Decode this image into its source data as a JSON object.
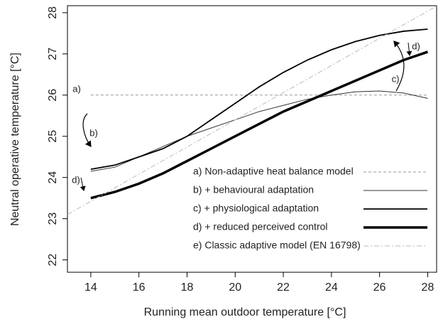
{
  "chart_data": {
    "type": "line",
    "x_label": "Running mean outdoor temperature [°C]",
    "y_label": "Neutral operative temperature [°C]",
    "xlim": [
      13.03,
      28.37
    ],
    "ylim": [
      21.7,
      28.17
    ],
    "xticks": [
      14,
      16,
      18,
      20,
      22,
      24,
      26,
      28
    ],
    "yticks": [
      22,
      23,
      24,
      25,
      26,
      27,
      28
    ],
    "annotations": [
      "a)",
      "b)",
      "c)",
      "d)",
      "d)"
    ],
    "series": [
      {
        "name": "a) Non-adaptive heat balance model",
        "color": "#999999",
        "style": "dashed",
        "width": 1,
        "x": [
          14,
          28
        ],
        "values": [
          26,
          26
        ]
      },
      {
        "name": "b) + behavioural adaptation",
        "color": "#333333",
        "style": "solid",
        "width": 1,
        "x": [
          14,
          15,
          16,
          17,
          18,
          19,
          20,
          21,
          22,
          23,
          24,
          25,
          26,
          27,
          28
        ],
        "values": [
          24.15,
          24.25,
          24.5,
          24.75,
          25.0,
          25.2,
          25.4,
          25.6,
          25.75,
          25.9,
          26.0,
          26.08,
          26.1,
          26.05,
          25.92
        ]
      },
      {
        "name": "c) + physiological adaptation",
        "color": "#000000",
        "style": "solid",
        "width": 1.8,
        "x": [
          14,
          15,
          16,
          17,
          18,
          19,
          20,
          21,
          22,
          23,
          24,
          25,
          26,
          27,
          28
        ],
        "values": [
          24.2,
          24.3,
          24.5,
          24.7,
          25.0,
          25.4,
          25.8,
          26.2,
          26.55,
          26.85,
          27.1,
          27.3,
          27.45,
          27.55,
          27.6
        ]
      },
      {
        "name": "d) + reduced perceived control",
        "color": "#000000",
        "style": "solid",
        "width": 3.5,
        "x": [
          14,
          15,
          16,
          17,
          18,
          19,
          20,
          21,
          22,
          23,
          24,
          25,
          26,
          27,
          28
        ],
        "values": [
          23.5,
          23.65,
          23.85,
          24.1,
          24.4,
          24.7,
          25.0,
          25.3,
          25.6,
          25.85,
          26.1,
          26.35,
          26.6,
          26.85,
          27.05
        ]
      },
      {
        "name": "e) Classic adaptive model (EN 16798)",
        "color": "#bbbbbb",
        "style": "dashdot",
        "width": 1,
        "x": [
          13.03,
          28.37
        ],
        "values": [
          23.1,
          28.16
        ]
      }
    ]
  }
}
